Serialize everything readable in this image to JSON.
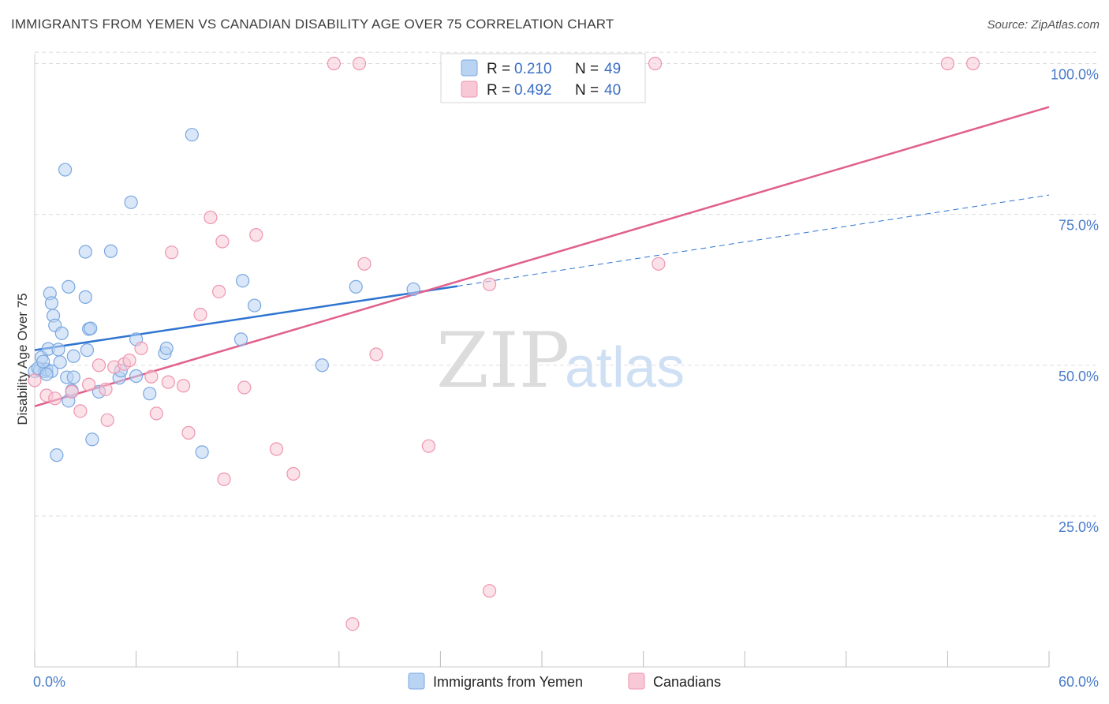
{
  "header": {
    "title": "IMMIGRANTS FROM YEMEN VS CANADIAN DISABILITY AGE OVER 75 CORRELATION CHART",
    "source": "Source: ZipAtlas.com"
  },
  "legend_box": {
    "rows": [
      {
        "r_label": "R =",
        "r_value": "0.210",
        "n_label": "N =",
        "n_value": "49"
      },
      {
        "r_label": "R =",
        "r_value": "0.492",
        "n_label": "N =",
        "n_value": "40"
      }
    ]
  },
  "watermark": {
    "zip": "ZIP",
    "atlas": "atlas"
  },
  "colors": {
    "blue_fill": "#b9d3f3",
    "blue_stroke": "#7aa7e0",
    "blue_line": "#2f74d0",
    "pink_fill": "#f8c8d6",
    "pink_stroke": "#ee95b0",
    "pink_line": "#e0608c",
    "grid": "#dddddd",
    "axis_text": "#4a7cc9"
  },
  "chart_data": {
    "type": "scatter",
    "title": "IMMIGRANTS FROM YEMEN VS CANADIAN DISABILITY AGE OVER 75 CORRELATION CHART",
    "xlabel": "",
    "ylabel": "Disability Age Over 75",
    "xlim": [
      0,
      60
    ],
    "ylim": [
      0,
      102
    ],
    "x_tick_labels": [
      "0.0%",
      "60.0%"
    ],
    "y_tick_labels": [
      "25.0%",
      "50.0%",
      "75.0%",
      "100.0%"
    ],
    "y_ticks": [
      25,
      50,
      75,
      100
    ],
    "grid": true,
    "legend_position": "bottom",
    "series": [
      {
        "name": "Immigrants from Yemen",
        "color": "#b9d3f3",
        "r": 0.21,
        "n": 49,
        "trend": {
          "x": [
            0,
            25
          ],
          "y": [
            52.5,
            63.1
          ],
          "dashed_to": [
            60,
            78.2
          ]
        },
        "points": [
          [
            0.0,
            49.0
          ],
          [
            0.3,
            49.2
          ],
          [
            0.4,
            51.3
          ],
          [
            0.6,
            49.0
          ],
          [
            0.7,
            49.3
          ],
          [
            0.8,
            52.7
          ],
          [
            0.9,
            61.9
          ],
          [
            1.0,
            60.3
          ],
          [
            1.1,
            58.2
          ],
          [
            1.2,
            56.6
          ],
          [
            1.3,
            35.1
          ],
          [
            1.4,
            52.6
          ],
          [
            1.5,
            50.5
          ],
          [
            1.6,
            55.3
          ],
          [
            1.8,
            82.4
          ],
          [
            1.9,
            48.0
          ],
          [
            2.0,
            44.1
          ],
          [
            2.0,
            63.0
          ],
          [
            2.2,
            45.8
          ],
          [
            2.3,
            48.0
          ],
          [
            2.3,
            51.5
          ],
          [
            3.0,
            61.3
          ],
          [
            3.0,
            68.8
          ],
          [
            3.1,
            52.5
          ],
          [
            3.2,
            56.0
          ],
          [
            3.3,
            56.1
          ],
          [
            3.4,
            37.7
          ],
          [
            3.8,
            45.6
          ],
          [
            4.5,
            68.9
          ],
          [
            5.0,
            47.9
          ],
          [
            5.1,
            49.1
          ],
          [
            5.7,
            77.0
          ],
          [
            6.0,
            54.3
          ],
          [
            6.0,
            48.2
          ],
          [
            6.8,
            45.3
          ],
          [
            7.7,
            52.0
          ],
          [
            7.8,
            52.8
          ],
          [
            9.3,
            88.2
          ],
          [
            9.9,
            35.6
          ],
          [
            12.2,
            54.3
          ],
          [
            12.3,
            64.0
          ],
          [
            13.0,
            59.9
          ],
          [
            17.0,
            50.0
          ],
          [
            19.0,
            63.0
          ],
          [
            22.4,
            62.6
          ],
          [
            0.2,
            49.5
          ],
          [
            0.5,
            50.6
          ],
          [
            1.0,
            49.0
          ],
          [
            0.7,
            48.5
          ]
        ]
      },
      {
        "name": "Canadians",
        "color": "#f8c8d6",
        "r": 0.492,
        "n": 40,
        "trend": {
          "x": [
            0,
            60
          ],
          "y": [
            43.2,
            92.8
          ]
        },
        "points": [
          [
            0.0,
            47.5
          ],
          [
            0.7,
            45.0
          ],
          [
            1.2,
            44.5
          ],
          [
            2.2,
            45.6
          ],
          [
            2.7,
            42.4
          ],
          [
            3.2,
            46.8
          ],
          [
            3.8,
            50.0
          ],
          [
            4.3,
            40.9
          ],
          [
            4.7,
            49.7
          ],
          [
            5.3,
            50.2
          ],
          [
            5.6,
            50.8
          ],
          [
            6.3,
            52.8
          ],
          [
            6.9,
            48.1
          ],
          [
            7.2,
            42.0
          ],
          [
            7.9,
            47.2
          ],
          [
            8.1,
            68.7
          ],
          [
            8.8,
            46.6
          ],
          [
            9.1,
            38.8
          ],
          [
            9.8,
            58.4
          ],
          [
            10.4,
            74.5
          ],
          [
            10.9,
            62.2
          ],
          [
            11.1,
            70.5
          ],
          [
            11.2,
            31.1
          ],
          [
            12.4,
            46.3
          ],
          [
            13.1,
            71.6
          ],
          [
            14.3,
            36.1
          ],
          [
            15.3,
            32.0
          ],
          [
            17.7,
            100.0
          ],
          [
            18.8,
            7.1
          ],
          [
            19.2,
            100.0
          ],
          [
            19.5,
            66.8
          ],
          [
            20.2,
            51.8
          ],
          [
            23.3,
            36.6
          ],
          [
            26.9,
            63.4
          ],
          [
            26.9,
            12.6
          ],
          [
            36.7,
            100.0
          ],
          [
            36.9,
            66.8
          ],
          [
            54.0,
            100.0
          ],
          [
            55.5,
            100.0
          ],
          [
            4.2,
            46.0
          ]
        ]
      }
    ]
  }
}
